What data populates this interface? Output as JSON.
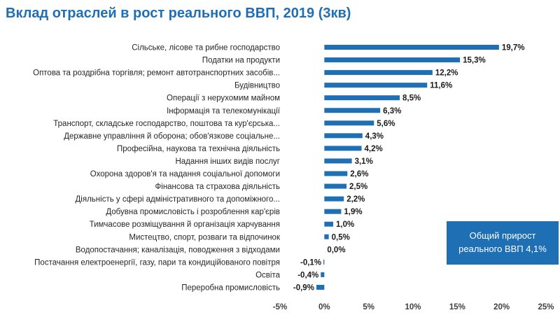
{
  "title": "Вклад отраслей в рост реального ВВП, 2019 (3кв)",
  "callout": {
    "line1": "Общий прирост",
    "line2": "реального ВВП 4,1%"
  },
  "colors": {
    "bar": "#1f6fb5",
    "title": "#1f6fb5",
    "callout_bg": "#1f6fb5"
  },
  "chart_data": {
    "type": "bar",
    "orientation": "horizontal",
    "title": "Вклад отраслей в рост реального ВВП, 2019 (3кв)",
    "xlabel": "",
    "ylabel": "",
    "xlim": [
      -5,
      25
    ],
    "ticks": [
      -5,
      0,
      5,
      10,
      15,
      20,
      25
    ],
    "tick_labels": [
      "-5%",
      "0%",
      "5%",
      "10%",
      "15%",
      "20%",
      "25%"
    ],
    "grid": false,
    "categories": [
      "Сільське, лісове та рибне господарство",
      "Податки на продукти",
      "Оптова та роздрібна торгівля; ремонт автотранспортних засобів...",
      "Будівництво",
      "Операції з нерухомим майном",
      "Інформація та телекомунікації",
      "Транспорт, складське господарство, поштова та кур'єрська...",
      "Державне управління й оборона; обов'язкове соціальне...",
      "Професійна, наукова та технічна діяльність",
      "Надання інших видів послуг",
      "Охорона здоров'я та надання соціальної допомоги",
      "Фінансова та страхова діяльність",
      "Діяльність у сфері адміністративного та допоміжного...",
      "Добувна промисловість і розроблення кар'єрів",
      "Тимчасове розміщування й організація харчування",
      "Мистецтво, спорт, розваги та відпочинок",
      "Водопостачання; каналізація, поводження з відходами",
      "Постачання електроенергії, газу, пари та кондиційованого повітря",
      "Освіта",
      "Переробна промисловість"
    ],
    "values": [
      19.7,
      15.3,
      12.2,
      11.6,
      8.5,
      6.3,
      5.6,
      4.3,
      4.2,
      3.1,
      2.6,
      2.5,
      2.2,
      1.9,
      1.0,
      0.5,
      0.0,
      -0.1,
      -0.4,
      -0.9
    ],
    "value_labels": [
      "19,7%",
      "15,3%",
      "12,2%",
      "11,6%",
      "8,5%",
      "6,3%",
      "5,6%",
      "4,3%",
      "4,2%",
      "3,1%",
      "2,6%",
      "2,5%",
      "2,2%",
      "1,9%",
      "1,0%",
      "0,5%",
      "0,0%",
      "-0,1%",
      "-0,4%",
      "-0,9%"
    ]
  }
}
